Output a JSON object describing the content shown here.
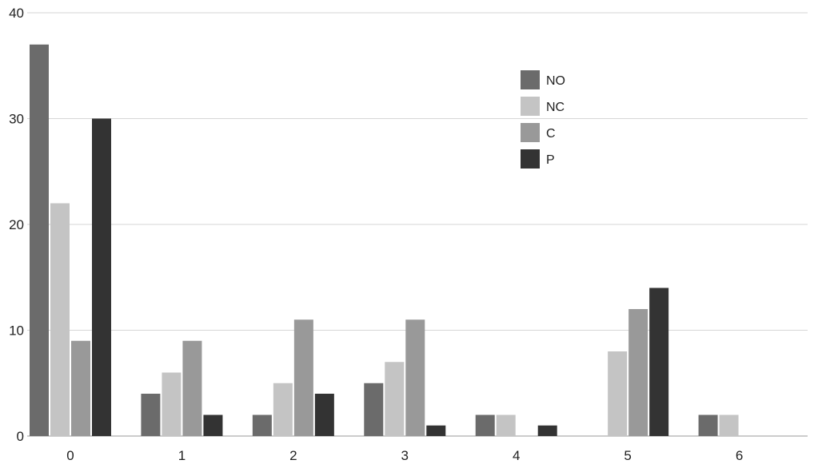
{
  "chart_data": {
    "type": "bar",
    "categories": [
      "0",
      "1",
      "2",
      "3",
      "4",
      "5",
      "6"
    ],
    "series": [
      {
        "name": "NO",
        "values": [
          37,
          4,
          2,
          5,
          2,
          0,
          2
        ],
        "color": "#6b6b6b"
      },
      {
        "name": "NC",
        "values": [
          22,
          6,
          5,
          7,
          2,
          8,
          2
        ],
        "color": "#c4c4c4"
      },
      {
        "name": "C",
        "values": [
          9,
          9,
          11,
          11,
          0,
          12,
          0
        ],
        "color": "#999999"
      },
      {
        "name": "P",
        "values": [
          30,
          2,
          4,
          1,
          1,
          14,
          0
        ],
        "color": "#333333"
      }
    ],
    "title": "",
    "xlabel": "",
    "ylabel": "",
    "ylim": [
      0,
      40
    ],
    "yticks": [
      "0",
      "10",
      "20",
      "30",
      "40"
    ],
    "grid": true,
    "legend_position": "top-right"
  }
}
